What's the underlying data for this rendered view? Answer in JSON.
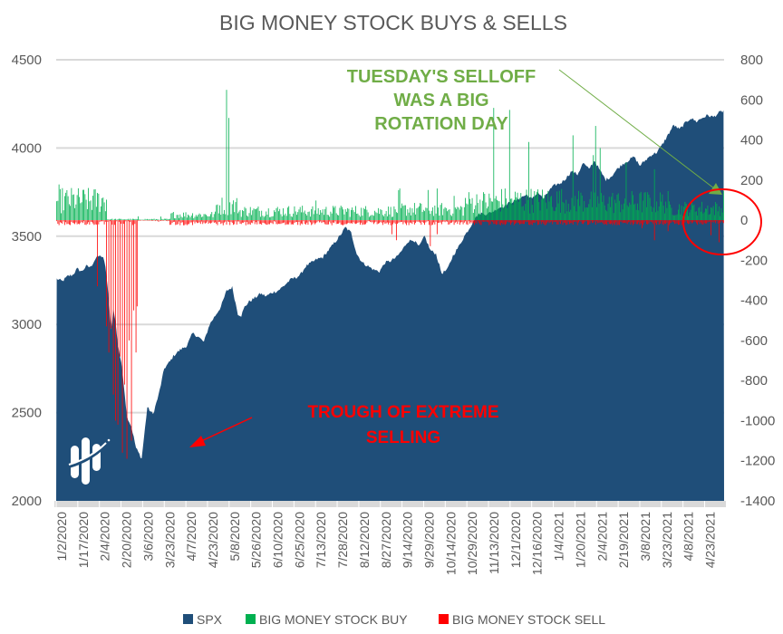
{
  "chart_data": {
    "type": "area",
    "title": "BIG MONEY STOCK BUYS & SELLS",
    "xlabel": "",
    "ylabel_left": "",
    "ylabel_right": "",
    "y_left_range": [
      2000,
      4500
    ],
    "y_left_ticks": [
      "4500",
      "4000",
      "3500",
      "3000",
      "2500",
      "2000"
    ],
    "y_left_tick_values": [
      4500,
      4000,
      3500,
      3000,
      2500,
      2000
    ],
    "y_right_range": [
      -1400,
      800
    ],
    "y_right_ticks": [
      "800",
      "600",
      "400",
      "200",
      "0",
      "-200",
      "-400",
      "-600",
      "-800",
      "-1000",
      "-1200",
      "-1400"
    ],
    "y_right_tick_values": [
      800,
      600,
      400,
      200,
      0,
      -200,
      -400,
      -600,
      -800,
      -1000,
      -1200,
      -1400
    ],
    "x_tick_labels": [
      "1/2/2020",
      "1/17/2020",
      "2/4/2020",
      "2/20/2020",
      "3/6/2020",
      "3/23/2020",
      "4/7/2020",
      "4/23/2020",
      "5/8/2020",
      "5/26/2020",
      "6/10/2020",
      "6/25/2020",
      "7/13/2020",
      "7/28/2020",
      "8/12/2020",
      "8/27/2020",
      "9/14/2020",
      "9/29/2020",
      "10/14/2020",
      "10/29/2020",
      "11/13/2020",
      "12/1/2020",
      "12/16/2020",
      "1/4/2021",
      "1/20/2021",
      "2/4/2021",
      "2/19/2021",
      "3/8/2021",
      "3/23/2021",
      "4/8/2021",
      "4/23/2021"
    ],
    "grid": true,
    "legend_position": "bottom",
    "series": [
      {
        "name": "SPX",
        "kind": "area",
        "axis": "left",
        "color": "#1f4e79",
        "keypoints_index": [
          0,
          5,
          10,
          14,
          18,
          22,
          26,
          30,
          33,
          35,
          37,
          39,
          41,
          43,
          46,
          48,
          50,
          52,
          54,
          58,
          62,
          66,
          70,
          75,
          80,
          85,
          90,
          95,
          100,
          103,
          106,
          110,
          115,
          120,
          125,
          130,
          135,
          140,
          145,
          150,
          155,
          160,
          163,
          166,
          170,
          175,
          180,
          185,
          190,
          195,
          200,
          205,
          208,
          211,
          215,
          220,
          225,
          230,
          235,
          240,
          245,
          250,
          255,
          260,
          265,
          270,
          275,
          280,
          285,
          290,
          295,
          300,
          305,
          310,
          315,
          320,
          325,
          330,
          335,
          340,
          345,
          350,
          355,
          360,
          365,
          370,
          375,
          380,
          385,
          390,
          395,
          400,
          405,
          410,
          415,
          420,
          425,
          430,
          435,
          440,
          445,
          450,
          455,
          460,
          465,
          470,
          475,
          480,
          485,
          490,
          495,
          500,
          505,
          510,
          515,
          520,
          525,
          530,
          535,
          540,
          545,
          550,
          555,
          560,
          565,
          570,
          575,
          580,
          585,
          589
        ],
        "keypoints_value": [
          3258,
          3245,
          3275,
          3280,
          3315,
          3300,
          3330,
          3325,
          3360,
          3380,
          3385,
          3390,
          3375,
          3330,
          3140,
          2970,
          3090,
          3010,
          2890,
          2740,
          2480,
          2420,
          2300,
          2240,
          2530,
          2490,
          2600,
          2750,
          2790,
          2820,
          2840,
          2860,
          2880,
          2950,
          2930,
          2900,
          3000,
          3050,
          3100,
          3190,
          3210,
          3060,
          3050,
          3100,
          3130,
          3150,
          3175,
          3160,
          3180,
          3190,
          3215,
          3245,
          3260,
          3265,
          3280,
          3330,
          3350,
          3370,
          3380,
          3420,
          3460,
          3500,
          3550,
          3520,
          3400,
          3350,
          3330,
          3310,
          3300,
          3350,
          3360,
          3380,
          3420,
          3470,
          3480,
          3440,
          3500,
          3420,
          3400,
          3290,
          3310,
          3390,
          3440,
          3500,
          3550,
          3610,
          3630,
          3625,
          3640,
          3660,
          3670,
          3690,
          3700,
          3720,
          3735,
          3710,
          3750,
          3710,
          3760,
          3790,
          3800,
          3830,
          3870,
          3850,
          3915,
          3880,
          3930,
          3870,
          3820,
          3840,
          3880,
          3910,
          3930,
          3950,
          3900,
          3930,
          3960,
          3975,
          4020,
          4075,
          4130,
          4105,
          4140,
          4170,
          4150,
          4170,
          4185,
          4175,
          4200,
          4210,
          4230
        ]
      },
      {
        "name": "BIG MONEY STOCK BUY",
        "kind": "bar",
        "axis": "right",
        "color": "#00b050",
        "note": "daily buy counts (approximate), generated per trading day",
        "segments": [
          {
            "from": 0,
            "to": 44,
            "typical": 110,
            "peak": 180
          },
          {
            "from": 45,
            "to": 100,
            "typical": 5,
            "peak": 20
          },
          {
            "from": 101,
            "to": 140,
            "typical": 30,
            "peak": 80
          },
          {
            "from": 141,
            "to": 160,
            "typical": 80,
            "peak": 650
          },
          {
            "from": 161,
            "to": 300,
            "typical": 50,
            "peak": 120
          },
          {
            "from": 301,
            "to": 360,
            "typical": 60,
            "peak": 160
          },
          {
            "from": 361,
            "to": 390,
            "typical": 100,
            "peak": 560
          },
          {
            "from": 391,
            "to": 470,
            "typical": 110,
            "peak": 460
          },
          {
            "from": 471,
            "to": 540,
            "typical": 100,
            "peak": 330
          },
          {
            "from": 541,
            "to": 589,
            "typical": 65,
            "peak": 145
          }
        ]
      },
      {
        "name": "BIG MONEY STOCK SELL",
        "kind": "bar",
        "axis": "right",
        "color": "#ff0000",
        "note": "daily sell counts (approximate), generated per trading day",
        "extremes": [
          {
            "index": 36,
            "value": -330
          },
          {
            "index": 44,
            "value": -530
          },
          {
            "index": 46,
            "value": -660
          },
          {
            "index": 48,
            "value": -540
          },
          {
            "index": 50,
            "value": -870
          },
          {
            "index": 52,
            "value": -1000
          },
          {
            "index": 54,
            "value": -1020
          },
          {
            "index": 56,
            "value": -680
          },
          {
            "index": 58,
            "value": -1160
          },
          {
            "index": 60,
            "value": -820
          },
          {
            "index": 62,
            "value": -1190
          },
          {
            "index": 64,
            "value": -600
          },
          {
            "index": 66,
            "value": -1100
          },
          {
            "index": 68,
            "value": -450
          },
          {
            "index": 70,
            "value": -660
          },
          {
            "index": 71,
            "value": -430
          },
          {
            "index": 90,
            "value": -40
          },
          {
            "index": 296,
            "value": -70
          },
          {
            "index": 300,
            "value": -100
          },
          {
            "index": 330,
            "value": -130
          },
          {
            "index": 336,
            "value": -70
          },
          {
            "index": 517,
            "value": -40
          },
          {
            "index": 528,
            "value": -100
          },
          {
            "index": 540,
            "value": -55
          },
          {
            "index": 578,
            "value": -75
          },
          {
            "index": 585,
            "value": -110
          }
        ],
        "typical": -15
      }
    ],
    "annotations": [
      {
        "text_lines": [
          "TUESDAY'S SELLOFF",
          "WAS A BIG",
          "ROTATION DAY"
        ],
        "color": "#70ad47",
        "points_to": "last trading day buy/sell bars"
      },
      {
        "text_lines": [
          "TROUGH OF EXTREME",
          "SELLING"
        ],
        "color": "#ff0000",
        "points_to": "March 2020 SPX trough"
      }
    ],
    "legend": [
      {
        "label": "SPX",
        "color": "#1f4e79"
      },
      {
        "label": "BIG MONEY STOCK BUY",
        "color": "#00b050"
      },
      {
        "label": "BIG MONEY STOCK SELL",
        "color": "#ff0000"
      }
    ],
    "n_points": 590
  },
  "logo": {
    "name": "company-logo"
  },
  "colors": {
    "spx": "#1f4e79",
    "buy": "#00b050",
    "sell": "#ff0000",
    "grid": "#d9d9d9",
    "text": "#595959",
    "annotation_green": "#70ad47",
    "annotation_red": "#ff0000"
  }
}
